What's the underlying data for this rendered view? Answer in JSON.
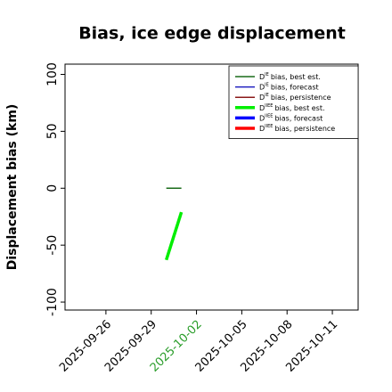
{
  "chart_data": {
    "type": "line",
    "title": "Bias, ice edge displacement",
    "ylabel": "Displacement bias (km)",
    "x": [
      "2025-09-30",
      "2025-10-01"
    ],
    "series": [
      {
        "symbol": "D",
        "superscript": "IE",
        "name": "bias, best est.",
        "color": "#1a6b1a",
        "width": 1.5,
        "values": [
          0,
          0
        ]
      },
      {
        "symbol": "D",
        "superscript": "IE",
        "name": "bias, forecast",
        "color": "#2020c0",
        "width": 1.5,
        "values": [
          null,
          null
        ]
      },
      {
        "symbol": "D",
        "superscript": "IE",
        "name": "bias, persistence",
        "color": "#8b1a1a",
        "width": 1.5,
        "values": [
          null,
          null
        ]
      },
      {
        "symbol": "D",
        "superscript": "IIEE",
        "name": "bias, best est.",
        "color": "#00ee00",
        "width": 3.5,
        "values": [
          -63,
          -21
        ]
      },
      {
        "symbol": "D",
        "superscript": "IIEE",
        "name": "bias, forecast",
        "color": "#0000ff",
        "width": 3.5,
        "values": [
          null,
          null
        ]
      },
      {
        "symbol": "D",
        "superscript": "IIEE",
        "name": "bias, persistence",
        "color": "#ff0000",
        "width": 3.5,
        "values": [
          null,
          null
        ]
      }
    ],
    "xlim": [
      "2025-09-23T07:00",
      "2025-10-12T17:00"
    ],
    "xticks": [
      "2025-09-26",
      "2025-09-29",
      "2025-10-02",
      "2025-10-05",
      "2025-10-08",
      "2025-10-11"
    ],
    "highlight_xtick": "2025-10-02",
    "highlight_color": "#2a9d2a",
    "ylim": [
      -107,
      109
    ],
    "yticks": [
      -100,
      -50,
      0,
      50,
      100
    ],
    "grid": false,
    "legend": "upper right"
  }
}
